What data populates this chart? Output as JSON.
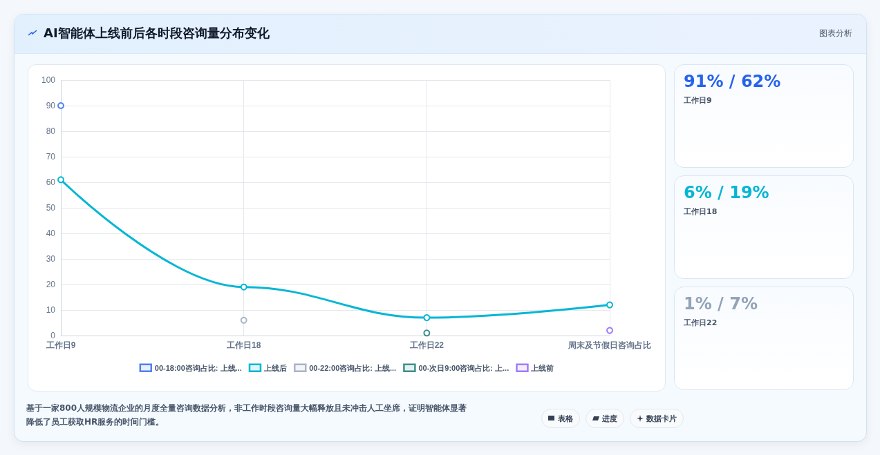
{
  "chart_data": [
    {
      "type": "line",
      "title": "AI智能体上线前后各时段咨询量分布变化",
      "categories": [
        "工作日9",
        "工作日18",
        "工作日22",
        "周末及节假日咨询占比"
      ],
      "series": [
        {
          "name": "00-18:00咨询占比: 上线...",
          "type": "scatter",
          "color": "#2563eb",
          "values": [
            90,
            null,
            null,
            null
          ]
        },
        {
          "name": "上线后",
          "type": "line",
          "color": "#06b6d4",
          "values": [
            61,
            19,
            7,
            12
          ]
        },
        {
          "name": "00-22:00咨询占比: 上线...",
          "type": "scatter",
          "color": "#94a3b8",
          "values": [
            null,
            6,
            null,
            null
          ]
        },
        {
          "name": "00-次日9:00咨询占比: 上...",
          "type": "scatter",
          "color": "#0f766e",
          "values": [
            null,
            null,
            1,
            null
          ]
        },
        {
          "name": "上线前",
          "type": "scatter",
          "color": "#8b5cf6",
          "values": [
            null,
            null,
            null,
            2
          ]
        }
      ],
      "ylim": [
        0,
        100
      ],
      "yticks": [
        0,
        10,
        20,
        30,
        40,
        50,
        60,
        70,
        80,
        90,
        100
      ],
      "grid": true,
      "legend": "bottom",
      "marker": "circle",
      "annotations": [
        "图表分析",
        "基于一家800人规模物流企业的月度全量咨询数据分析，非工作时段咨询量大幅释放且未冲击人工坐席，证明智能体显著降低了员工获取HR服务的时间门槛。",
        "表格",
        "进度",
        "数据卡片"
      ]
    },
    {
      "type": "other",
      "annotations": [
        "91% / 62%",
        "工作日9",
        "6% / 19%",
        "工作日18",
        "1% / 7%",
        "工作日22"
      ]
    }
  ]
}
